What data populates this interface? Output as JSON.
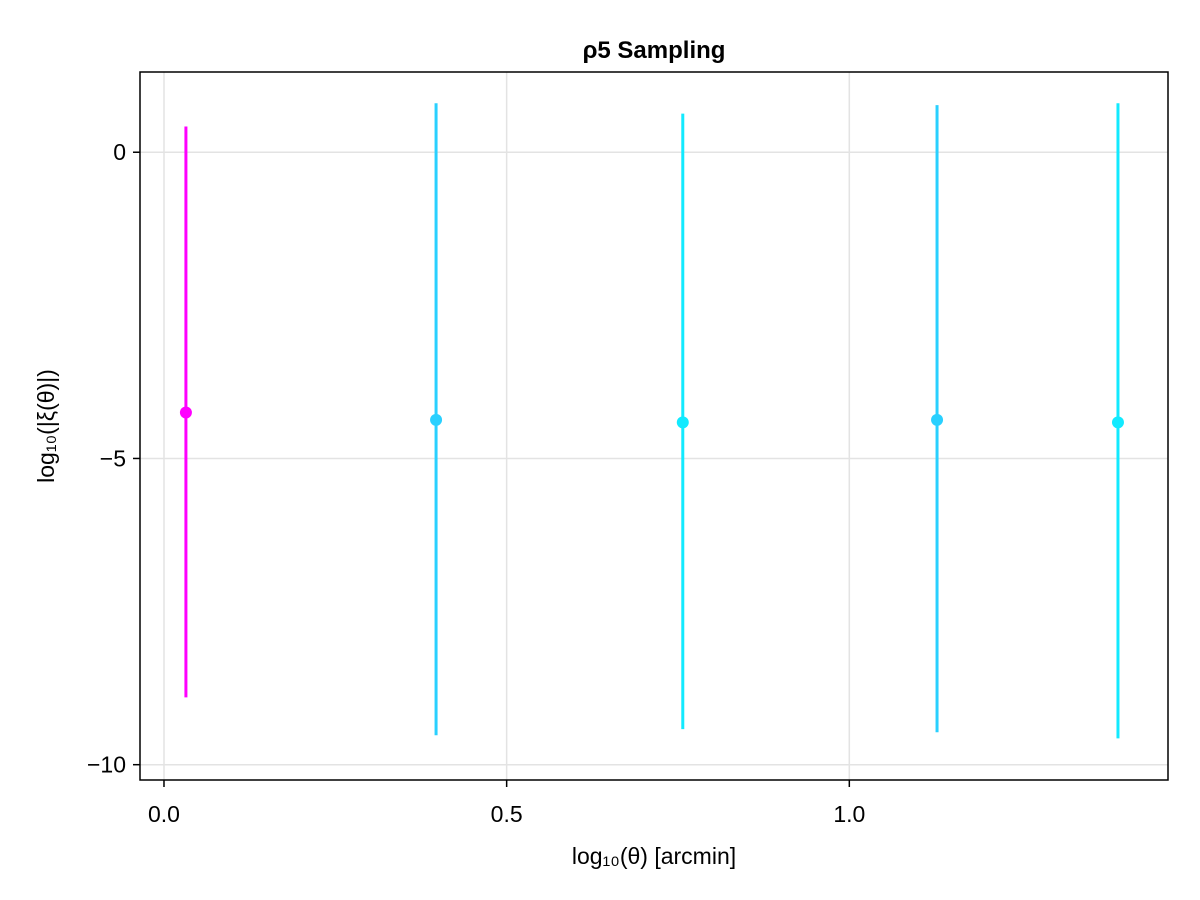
{
  "chart_data": {
    "type": "scatter",
    "title": "ρ5 Sampling",
    "xlabel": "log₁₀(θ) [arcmin]",
    "ylabel": "log₁₀(|ξ(θ)|)",
    "xlim": [
      -0.035,
      1.465
    ],
    "ylim": [
      -10.25,
      1.31
    ],
    "x_ticks": [
      0.0,
      0.5,
      1.0
    ],
    "x_tick_labels": [
      "0.0",
      "0.5",
      "1.0"
    ],
    "y_ticks": [
      0,
      -5,
      -10
    ],
    "y_tick_labels": [
      "0",
      "−5",
      "−10"
    ],
    "grid": true,
    "legend": "none",
    "points": [
      {
        "x": 0.032,
        "y": -4.25,
        "err_low": -8.9,
        "err_high": 0.42,
        "color": "#ff00ff"
      },
      {
        "x": 0.397,
        "y": -4.37,
        "err_low": -9.52,
        "err_high": 0.8,
        "color": "#29d0ff"
      },
      {
        "x": 0.757,
        "y": -4.41,
        "err_low": -9.42,
        "err_high": 0.63,
        "color": "#12eaff"
      },
      {
        "x": 1.128,
        "y": -4.37,
        "err_low": -9.47,
        "err_high": 0.77,
        "color": "#29d0ff"
      },
      {
        "x": 1.392,
        "y": -4.41,
        "err_low": -9.57,
        "err_high": 0.8,
        "color": "#12eaff"
      }
    ]
  }
}
